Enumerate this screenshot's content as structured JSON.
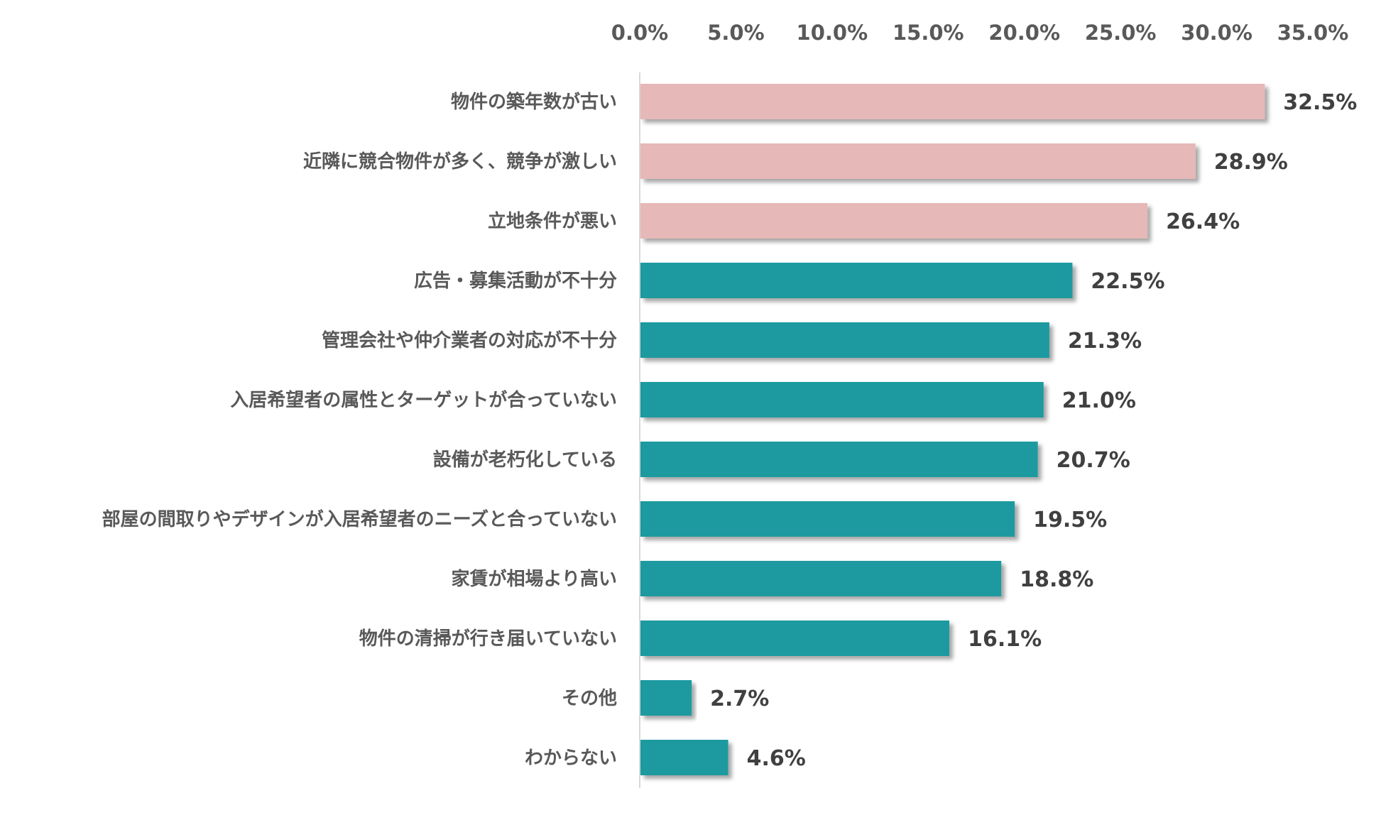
{
  "chart_data": {
    "type": "bar",
    "orientation": "horizontal",
    "title": "",
    "xlabel": "",
    "ylabel": "",
    "xlim": [
      0,
      35
    ],
    "x_ticks": [
      "0.0%",
      "5.0%",
      "10.0%",
      "15.0%",
      "20.0%",
      "25.0%",
      "30.0%",
      "35.0%"
    ],
    "x_axis_position": "top",
    "grid": false,
    "categories": [
      "物件の築年数が古い",
      "近隣に競合物件が多く、競争が激しい",
      "立地条件が悪い",
      "広告・募集活動が不十分",
      "管理会社や仲介業者の対応が不十分",
      "入居希望者の属性とターゲットが合っていない",
      "設備が老朽化している",
      "部屋の間取りやデザインが入居希望者のニーズと合っていない",
      "家賃が相場より高い",
      "物件の清掃が行き届いていない",
      "その他",
      "わからない"
    ],
    "values": [
      32.5,
      28.9,
      26.4,
      22.5,
      21.3,
      21.0,
      20.7,
      19.5,
      18.8,
      16.1,
      2.7,
      4.6
    ],
    "value_labels": [
      "32.5%",
      "28.9%",
      "26.4%",
      "22.5%",
      "21.3%",
      "21.0%",
      "20.7%",
      "19.5%",
      "18.8%",
      "16.1%",
      "2.7%",
      "4.6%"
    ],
    "highlight_count": 3,
    "colors": {
      "highlight": "#e6b8b7",
      "default": "#1b9aa0",
      "axis": "#d9d9d9"
    }
  }
}
